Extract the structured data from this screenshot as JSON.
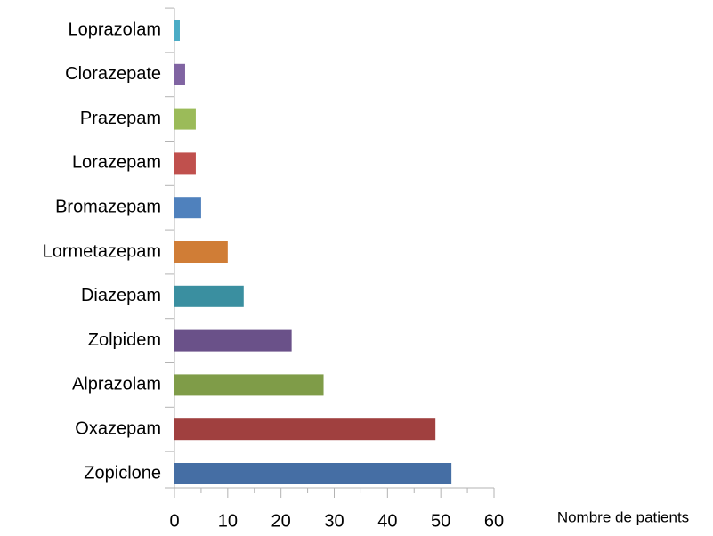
{
  "chart_data": {
    "type": "barh",
    "x_label": "Nombre de patients",
    "categories": [
      "Zopiclone",
      "Oxazepam",
      "Alprazolam",
      "Zolpidem",
      "Diazepam",
      "Lormetazepam",
      "Bromazepam",
      "Lorazepam",
      "Prazepam",
      "Clorazepate",
      "Loprazolam"
    ],
    "values": [
      52,
      49,
      28,
      22,
      13,
      10,
      5,
      4,
      4,
      2,
      1
    ],
    "colors": [
      "#456ea4",
      "#a0403f",
      "#7f9c48",
      "#6a5189",
      "#3a8fa0",
      "#d07d36",
      "#4f81bd",
      "#c0504d",
      "#9bbb59",
      "#8064a2",
      "#4bacc6"
    ],
    "xlim": [
      0,
      60
    ],
    "xticks": [
      0,
      10,
      20,
      30,
      40,
      50,
      60
    ],
    "grid": false
  }
}
